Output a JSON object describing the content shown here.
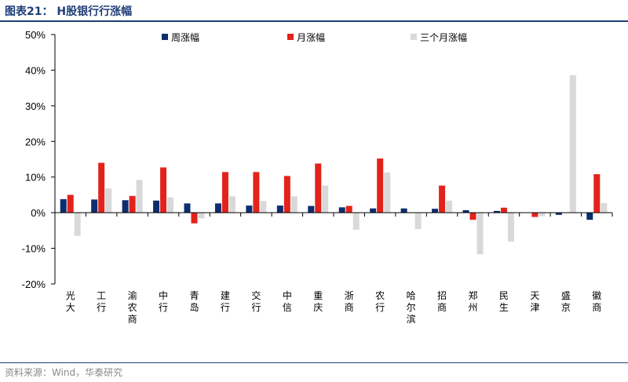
{
  "header": {
    "title": "图表21： H股银行行涨幅"
  },
  "footer": {
    "source": "资料来源：Wind，华泰研究"
  },
  "colors": {
    "weekly": "#0d2e6e",
    "monthly": "#e3231b",
    "three_month": "#d9d9d9",
    "title": "#1f3d78"
  },
  "chart_data": {
    "type": "bar",
    "ylim": [
      -20,
      50
    ],
    "yticks": [
      "50%",
      "40%",
      "30%",
      "20%",
      "10%",
      "0%",
      "-10%",
      "-20%"
    ],
    "ytick_values": [
      50,
      40,
      30,
      20,
      10,
      0,
      -10,
      -20
    ],
    "legend_position": "top",
    "categories": [
      "光大",
      "工行",
      "渝农商",
      "中行",
      "青岛",
      "建行",
      "交行",
      "中信",
      "重庆",
      "浙商",
      "农行",
      "哈尔滨",
      "招商",
      "郑州",
      "民生",
      "天津",
      "盛京",
      "徽商"
    ],
    "series": [
      {
        "name": "周涨幅",
        "values": [
          3.8,
          3.7,
          3.5,
          3.4,
          2.6,
          2.6,
          2.0,
          2.0,
          1.9,
          1.5,
          1.2,
          1.2,
          1.1,
          0.7,
          0.5,
          0.0,
          -0.6,
          -2.0
        ]
      },
      {
        "name": "月涨幅",
        "values": [
          5.0,
          14.0,
          4.7,
          12.7,
          -3.0,
          11.4,
          11.4,
          10.3,
          13.8,
          1.9,
          15.2,
          0.0,
          7.6,
          -2.0,
          1.4,
          -1.2,
          0.0,
          10.8
        ]
      },
      {
        "name": "三个月涨幅",
        "values": [
          -6.5,
          6.8,
          9.2,
          4.3,
          -1.6,
          4.6,
          3.3,
          4.6,
          7.6,
          -4.8,
          11.3,
          -4.6,
          3.4,
          -11.7,
          -8.1,
          -1.0,
          38.6,
          2.7
        ]
      }
    ]
  }
}
